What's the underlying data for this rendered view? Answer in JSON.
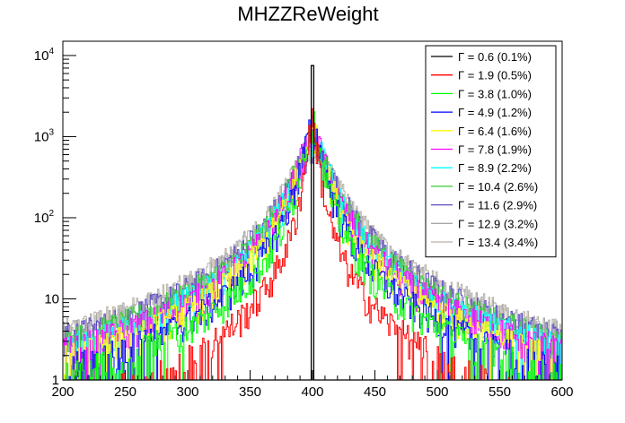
{
  "chart_data": {
    "type": "line",
    "style": "step-histogram",
    "title": "MHZZReWeight",
    "xlabel": "",
    "ylabel": "",
    "xlim": [
      200,
      600
    ],
    "ylim": [
      1,
      15000
    ],
    "y_scale": "log",
    "grid": false,
    "legend_position": "top-right",
    "x_ticks": [
      "200",
      "250",
      "300",
      "350",
      "400",
      "450",
      "500",
      "550",
      "600"
    ],
    "y_ticks": [
      {
        "value": 1,
        "label": "1"
      },
      {
        "value": 10,
        "label": "10"
      },
      {
        "value": 100,
        "label": "10",
        "exp": "2"
      },
      {
        "value": 1000,
        "label": "10",
        "exp": "3"
      },
      {
        "value": 10000,
        "label": "10",
        "exp": "4"
      }
    ],
    "peak_position": 400,
    "series": [
      {
        "name": "Γ = 0.6 (0.1%)",
        "color": "#000000",
        "peak": 7500,
        "width": 0.8
      },
      {
        "name": "Γ = 1.9 (0.5%)",
        "color": "#ff0000",
        "peak": 1600,
        "width": 3.5
      },
      {
        "name": "Γ = 3.8 (1.0%)",
        "color": "#00ff00",
        "peak": 1500,
        "width": 5.5
      },
      {
        "name": "Γ = 4.9 (1.2%)",
        "color": "#0000ff",
        "peak": 1300,
        "width": 6.5
      },
      {
        "name": "Γ = 6.4 (1.6%)",
        "color": "#ffff00",
        "peak": 1150,
        "width": 8
      },
      {
        "name": "Γ = 7.8 (1.9%)",
        "color": "#ff00ff",
        "peak": 1000,
        "width": 9.5
      },
      {
        "name": "Γ = 8.9 (2.2%)",
        "color": "#00ffff",
        "peak": 900,
        "width": 10.5
      },
      {
        "name": "Γ = 10.4 (2.6%)",
        "color": "#33cc33",
        "peak": 800,
        "width": 12
      },
      {
        "name": "Γ = 11.6 (2.9%)",
        "color": "#5b4bc2",
        "peak": 720,
        "width": 13.5
      },
      {
        "name": "Γ = 12.9 (3.2%)",
        "color": "#a8a8a8",
        "peak": 650,
        "width": 15
      },
      {
        "name": "Γ = 13.4 (3.4%)",
        "color": "#b8b0a4",
        "peak": 600,
        "width": 16
      }
    ]
  }
}
